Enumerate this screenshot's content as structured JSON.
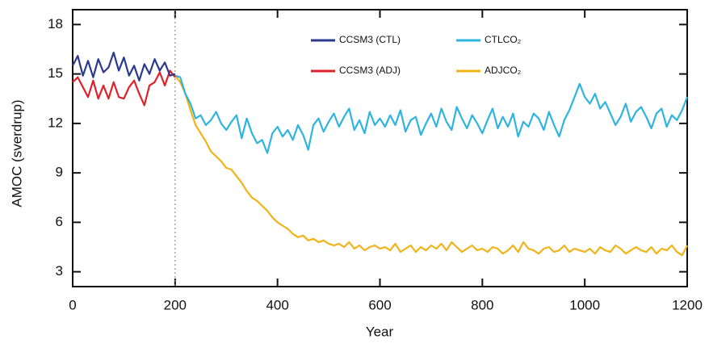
{
  "chart_data": {
    "type": "line",
    "xlabel": "Year",
    "ylabel": "AMOC (sverdrup)",
    "xlim": [
      0,
      1200
    ],
    "ylim": [
      2.1,
      18.9
    ],
    "xticks": [
      0,
      200,
      400,
      600,
      800,
      1000,
      1200
    ],
    "yticks": [
      3,
      6,
      9,
      12,
      15,
      18
    ],
    "vline": 200,
    "series": [
      {
        "name": "CCSM3 (CTL)",
        "color": "#2b3990",
        "x": [
          0,
          10,
          20,
          30,
          40,
          50,
          60,
          70,
          80,
          90,
          100,
          110,
          120,
          130,
          140,
          150,
          160,
          170,
          180,
          190,
          200
        ],
        "values": [
          15.5,
          16.1,
          14.9,
          15.8,
          14.8,
          15.9,
          15.1,
          15.4,
          16.3,
          15.2,
          16.0,
          14.9,
          15.5,
          14.6,
          15.6,
          15.0,
          15.9,
          15.2,
          15.7,
          14.9,
          15.0
        ]
      },
      {
        "name": "CCSM3 (ADJ)",
        "color": "#e0202a",
        "x": [
          0,
          10,
          20,
          30,
          40,
          50,
          60,
          70,
          80,
          90,
          100,
          110,
          120,
          130,
          140,
          150,
          160,
          170,
          180,
          190,
          200
        ],
        "values": [
          14.5,
          14.8,
          14.2,
          13.6,
          14.6,
          13.5,
          14.3,
          13.5,
          14.5,
          13.6,
          13.5,
          14.2,
          14.6,
          13.8,
          13.1,
          14.3,
          14.5,
          15.1,
          14.3,
          15.2,
          14.8
        ]
      },
      {
        "name": "CTLCO₂",
        "color": "#2eb4e0",
        "x": [
          200,
          210,
          220,
          230,
          240,
          250,
          260,
          270,
          280,
          290,
          300,
          310,
          320,
          330,
          340,
          350,
          360,
          370,
          380,
          390,
          400,
          410,
          420,
          430,
          440,
          450,
          460,
          470,
          480,
          490,
          500,
          510,
          520,
          530,
          540,
          550,
          560,
          570,
          580,
          590,
          600,
          610,
          620,
          630,
          640,
          650,
          660,
          670,
          680,
          690,
          700,
          710,
          720,
          730,
          740,
          750,
          760,
          770,
          780,
          790,
          800,
          810,
          820,
          830,
          840,
          850,
          860,
          870,
          880,
          890,
          900,
          910,
          920,
          930,
          940,
          950,
          960,
          970,
          980,
          990,
          1000,
          1010,
          1020,
          1030,
          1040,
          1050,
          1060,
          1070,
          1080,
          1090,
          1100,
          1110,
          1120,
          1130,
          1140,
          1150,
          1160,
          1170,
          1180,
          1190,
          1200
        ],
        "values": [
          14.9,
          14.8,
          13.8,
          13.2,
          12.3,
          12.5,
          11.9,
          12.2,
          12.7,
          12.0,
          11.6,
          12.1,
          12.5,
          11.1,
          12.3,
          11.4,
          10.8,
          11.0,
          10.2,
          11.4,
          11.8,
          11.2,
          11.6,
          11.0,
          11.9,
          11.3,
          10.4,
          11.9,
          12.3,
          11.5,
          12.1,
          12.6,
          11.8,
          12.4,
          12.9,
          11.6,
          12.2,
          11.4,
          12.7,
          11.9,
          12.3,
          11.8,
          12.5,
          11.9,
          12.8,
          11.5,
          12.2,
          12.4,
          11.3,
          12.0,
          12.6,
          11.8,
          12.9,
          12.1,
          11.6,
          13.0,
          12.3,
          11.7,
          12.5,
          12.0,
          11.4,
          12.2,
          12.9,
          11.7,
          12.4,
          11.8,
          12.6,
          11.2,
          12.1,
          11.8,
          12.6,
          12.3,
          11.6,
          12.7,
          11.9,
          11.2,
          12.2,
          12.8,
          13.6,
          14.4,
          13.6,
          13.2,
          13.8,
          12.9,
          13.3,
          12.6,
          11.9,
          12.4,
          13.2,
          12.1,
          12.7,
          13.0,
          12.4,
          11.7,
          12.6,
          12.9,
          11.8,
          12.5,
          12.2,
          12.8,
          13.6
        ]
      },
      {
        "name": "ADJCO₂",
        "color": "#f0b318",
        "x": [
          200,
          210,
          220,
          230,
          240,
          250,
          260,
          270,
          280,
          290,
          300,
          310,
          320,
          330,
          340,
          350,
          360,
          370,
          380,
          390,
          400,
          410,
          420,
          430,
          440,
          450,
          460,
          470,
          480,
          490,
          500,
          510,
          520,
          530,
          540,
          550,
          560,
          570,
          580,
          590,
          600,
          610,
          620,
          630,
          640,
          650,
          660,
          670,
          680,
          690,
          700,
          710,
          720,
          730,
          740,
          750,
          760,
          770,
          780,
          790,
          800,
          810,
          820,
          830,
          840,
          850,
          860,
          870,
          880,
          890,
          900,
          910,
          920,
          930,
          940,
          950,
          960,
          970,
          980,
          990,
          1000,
          1010,
          1020,
          1030,
          1040,
          1050,
          1060,
          1070,
          1080,
          1090,
          1100,
          1110,
          1120,
          1130,
          1140,
          1150,
          1160,
          1170,
          1180,
          1190,
          1200
        ],
        "values": [
          14.9,
          14.5,
          13.8,
          12.8,
          11.9,
          11.4,
          10.9,
          10.3,
          10.0,
          9.7,
          9.3,
          9.2,
          8.8,
          8.4,
          7.9,
          7.5,
          7.3,
          7.0,
          6.7,
          6.3,
          6.0,
          5.8,
          5.6,
          5.3,
          5.1,
          5.2,
          4.9,
          5.0,
          4.8,
          4.9,
          4.7,
          4.6,
          4.7,
          4.5,
          4.8,
          4.4,
          4.6,
          4.3,
          4.5,
          4.6,
          4.4,
          4.5,
          4.3,
          4.7,
          4.2,
          4.4,
          4.6,
          4.2,
          4.5,
          4.3,
          4.6,
          4.4,
          4.7,
          4.3,
          4.8,
          4.5,
          4.2,
          4.4,
          4.6,
          4.3,
          4.4,
          4.2,
          4.5,
          4.4,
          4.1,
          4.3,
          4.6,
          4.2,
          4.8,
          4.4,
          4.3,
          4.1,
          4.4,
          4.5,
          4.2,
          4.3,
          4.6,
          4.2,
          4.4,
          4.3,
          4.2,
          4.4,
          4.1,
          4.5,
          4.3,
          4.2,
          4.6,
          4.4,
          4.1,
          4.3,
          4.5,
          4.3,
          4.2,
          4.5,
          4.1,
          4.4,
          4.3,
          4.6,
          4.2,
          4.0,
          4.6
        ]
      }
    ]
  }
}
